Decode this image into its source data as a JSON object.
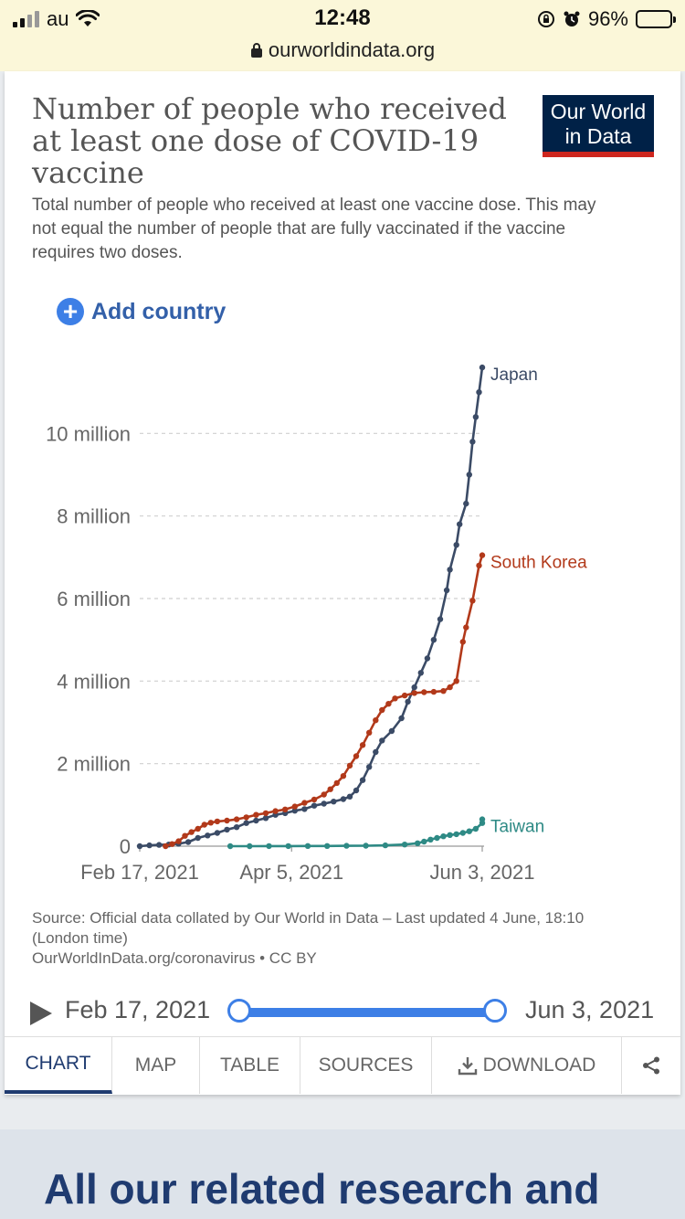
{
  "status": {
    "carrier": "au",
    "time": "12:48",
    "battery": "96%",
    "url": "ourworldindata.org"
  },
  "card": {
    "title": "Number of people who received at least one dose of COVID-19 vaccine",
    "subtitle": "Total number of people who received at least one vaccine dose. This may not equal the number of people that are fully vaccinated if the vaccine requires two doses.",
    "logo_line1": "Our World",
    "logo_line2": "in Data",
    "add_country": "Add country",
    "source": "Source: Official data collated by Our World in Data – Last updated 4 June, 18:10 (London time)",
    "source_link": "OurWorldInData.org/coronavirus • CC BY"
  },
  "timeline": {
    "start": "Feb 17, 2021",
    "end": "Jun 3, 2021"
  },
  "tabs": {
    "chart": "CHART",
    "map": "MAP",
    "table": "TABLE",
    "sources": "SOURCES",
    "download": "DOWNLOAD"
  },
  "related": {
    "heading": "All our related research and"
  },
  "colors": {
    "japan": "#3b4b66",
    "south_korea": "#b2391a",
    "taiwan": "#2e8a85",
    "accent": "#3d7fe6",
    "brand": "#002147"
  },
  "chart_data": {
    "type": "line",
    "title": "Number of people who received at least one dose of COVID-19 vaccine",
    "x_unit": "days since Feb 17, 2021",
    "xlim": [
      0,
      106
    ],
    "ylim": [
      0,
      12000000
    ],
    "y_ticks": [
      0,
      2000000,
      4000000,
      6000000,
      8000000,
      10000000
    ],
    "y_tick_labels": [
      "0",
      "2 million",
      "4 million",
      "6 million",
      "8 million",
      "10 million"
    ],
    "x_ticks": [
      0,
      47,
      106
    ],
    "x_tick_labels": [
      "Feb 17, 2021",
      "Apr 5, 2021",
      "Jun 3, 2021"
    ],
    "grid": true,
    "series": [
      {
        "name": "Japan",
        "label": "Japan",
        "color": "#3b4b66",
        "points": [
          [
            0,
            0
          ],
          [
            3,
            20000
          ],
          [
            6,
            30000
          ],
          [
            9,
            40000
          ],
          [
            12,
            60000
          ],
          [
            15,
            100000
          ],
          [
            18,
            200000
          ],
          [
            21,
            260000
          ],
          [
            24,
            320000
          ],
          [
            27,
            400000
          ],
          [
            30,
            460000
          ],
          [
            33,
            560000
          ],
          [
            36,
            620000
          ],
          [
            39,
            680000
          ],
          [
            42,
            760000
          ],
          [
            45,
            800000
          ],
          [
            48,
            860000
          ],
          [
            51,
            900000
          ],
          [
            54,
            980000
          ],
          [
            57,
            1030000
          ],
          [
            60,
            1080000
          ],
          [
            63,
            1140000
          ],
          [
            65,
            1200000
          ],
          [
            67,
            1350000
          ],
          [
            69,
            1600000
          ],
          [
            71,
            1920000
          ],
          [
            73,
            2280000
          ],
          [
            75,
            2560000
          ],
          [
            78,
            2790000
          ],
          [
            81,
            3100000
          ],
          [
            83,
            3500000
          ],
          [
            85,
            3850000
          ],
          [
            87,
            4200000
          ],
          [
            89,
            4550000
          ],
          [
            91,
            5000000
          ],
          [
            93,
            5500000
          ],
          [
            95,
            6200000
          ],
          [
            96,
            6700000
          ],
          [
            98,
            7300000
          ],
          [
            99,
            7800000
          ],
          [
            101,
            8300000
          ],
          [
            102,
            9000000
          ],
          [
            103,
            9800000
          ],
          [
            104,
            10400000
          ],
          [
            105,
            11000000
          ],
          [
            106,
            11600000
          ]
        ]
      },
      {
        "name": "South Korea",
        "label": "South Korea",
        "color": "#b2391a",
        "points": [
          [
            8,
            0
          ],
          [
            10,
            50000
          ],
          [
            12,
            120000
          ],
          [
            14,
            250000
          ],
          [
            16,
            340000
          ],
          [
            18,
            420000
          ],
          [
            20,
            520000
          ],
          [
            22,
            570000
          ],
          [
            24,
            600000
          ],
          [
            27,
            620000
          ],
          [
            30,
            650000
          ],
          [
            33,
            700000
          ],
          [
            36,
            760000
          ],
          [
            39,
            800000
          ],
          [
            42,
            850000
          ],
          [
            45,
            890000
          ],
          [
            48,
            960000
          ],
          [
            51,
            1050000
          ],
          [
            54,
            1130000
          ],
          [
            57,
            1250000
          ],
          [
            59,
            1380000
          ],
          [
            61,
            1530000
          ],
          [
            63,
            1700000
          ],
          [
            65,
            1950000
          ],
          [
            67,
            2180000
          ],
          [
            69,
            2450000
          ],
          [
            71,
            2750000
          ],
          [
            73,
            3050000
          ],
          [
            75,
            3300000
          ],
          [
            77,
            3450000
          ],
          [
            79,
            3580000
          ],
          [
            82,
            3650000
          ],
          [
            85,
            3710000
          ],
          [
            88,
            3730000
          ],
          [
            91,
            3740000
          ],
          [
            94,
            3760000
          ],
          [
            96,
            3850000
          ],
          [
            98,
            4000000
          ],
          [
            100,
            4950000
          ],
          [
            101,
            5300000
          ],
          [
            103,
            5950000
          ],
          [
            105,
            6800000
          ],
          [
            106,
            7050000
          ]
        ]
      },
      {
        "name": "Taiwan",
        "label": "Taiwan",
        "color": "#2e8a85",
        "points": [
          [
            28,
            0
          ],
          [
            34,
            1000
          ],
          [
            40,
            2000
          ],
          [
            46,
            3000
          ],
          [
            52,
            4000
          ],
          [
            58,
            5000
          ],
          [
            64,
            8000
          ],
          [
            70,
            12000
          ],
          [
            76,
            20000
          ],
          [
            82,
            40000
          ],
          [
            86,
            70000
          ],
          [
            88,
            110000
          ],
          [
            90,
            160000
          ],
          [
            92,
            200000
          ],
          [
            94,
            240000
          ],
          [
            96,
            270000
          ],
          [
            98,
            290000
          ],
          [
            100,
            320000
          ],
          [
            102,
            360000
          ],
          [
            104,
            420000
          ],
          [
            106,
            560000
          ],
          [
            106,
            650000
          ]
        ]
      }
    ]
  }
}
